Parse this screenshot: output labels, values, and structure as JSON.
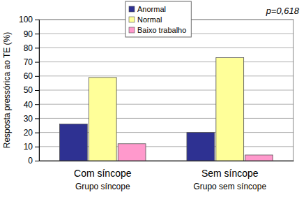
{
  "chart_data": {
    "type": "bar",
    "y_label": "Resposta pressórica ao TE (%)",
    "annotation": "p=0,618",
    "categories": [
      "Com síncope\nGrupo síncope",
      "Sem síncope\nGrupo sem síncope"
    ],
    "series": [
      {
        "name": "Anormal",
        "color": "#2e3192",
        "values": [
          26,
          20
        ]
      },
      {
        "name": "Normal",
        "color": "#ffff99",
        "values": [
          59,
          73
        ]
      },
      {
        "name": "Baixo trabalho",
        "color": "#ff99cc",
        "values": [
          12,
          4
        ]
      }
    ],
    "ylim": [
      0,
      100
    ],
    "yticks": [
      0,
      10,
      20,
      30,
      40,
      50,
      60,
      70,
      80,
      90,
      100
    ],
    "grid": true,
    "legend": "top"
  }
}
